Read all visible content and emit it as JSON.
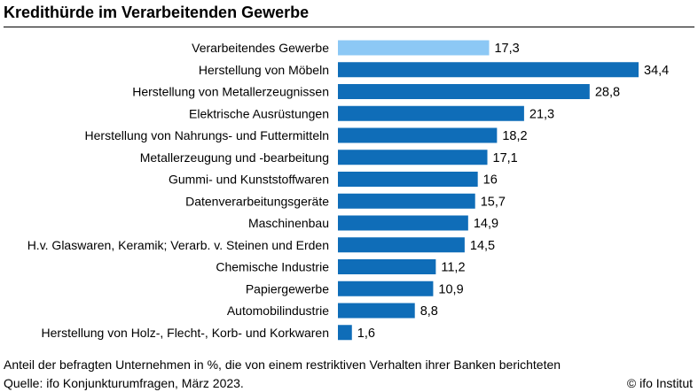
{
  "chart_data": {
    "type": "bar",
    "orientation": "horizontal",
    "title": "Kredithürde im Verarbeitenden Gewerbe",
    "categories": [
      "Verarbeitendes Gewerbe",
      "Herstellung von Möbeln",
      "Herstellung von Metallerzeugnissen",
      "Elektrische Ausrüstungen",
      "Herstellung von Nahrungs- und Futtermitteln",
      "Metallerzeugung und -bearbeitung",
      "Gummi- und Kunststoffwaren",
      "Datenverarbeitungsgeräte",
      "Maschinenbau",
      "H.v. Glaswaren, Keramik; Verarb. v. Steinen und Erden",
      "Chemische Industrie",
      "Papiergewerbe",
      "Automobilindustrie",
      "Herstellung von Holz-, Flecht-, Korb- und Korkwaren"
    ],
    "values": [
      17.3,
      34.4,
      28.8,
      21.3,
      18.2,
      17.1,
      16,
      15.7,
      14.9,
      14.5,
      11.2,
      10.9,
      8.8,
      1.6
    ],
    "value_labels": [
      "17,3",
      "34,4",
      "28,8",
      "21,3",
      "18,2",
      "17,1",
      "16",
      "15,7",
      "14,9",
      "14,5",
      "11,2",
      "10,9",
      "8,8",
      "1,6"
    ],
    "highlight_index": 0,
    "colors": {
      "highlight": "#8cc8f5",
      "bar": "#0f6db8"
    },
    "xlim": [
      0,
      34.4
    ],
    "xlabel": "",
    "ylabel": "",
    "grid": false,
    "legend": "none"
  },
  "footer": {
    "note": "Anteil der befragten Unternehmen in %, die von einem restriktiven Verhalten ihrer Banken berichteten",
    "source": "Quelle: ifo Konjunkturumfragen, März 2023.",
    "credit": "© ifo Institut"
  }
}
